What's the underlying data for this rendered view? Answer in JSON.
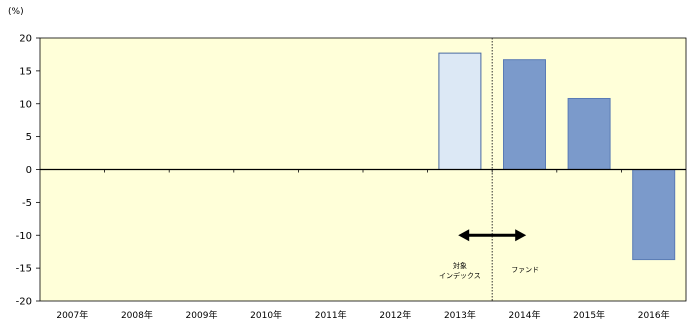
{
  "chart_data": {
    "type": "bar",
    "unit_label": "(%)",
    "categories": [
      "2007年",
      "2008年",
      "2009年",
      "2010年",
      "2011年",
      "2012年",
      "2013年",
      "2014年",
      "2015年",
      "2016年"
    ],
    "ylim": [
      -20,
      20
    ],
    "yticks": [
      20,
      15,
      10,
      5,
      0,
      -5,
      -10,
      -15,
      -20
    ],
    "series": [
      {
        "name": "対象インデックス",
        "color": "#dce8f5",
        "values": [
          null,
          null,
          null,
          null,
          null,
          null,
          17.7,
          null,
          null,
          null
        ]
      },
      {
        "name": "ファンド",
        "color": "#7b9acb",
        "values": [
          null,
          null,
          null,
          null,
          null,
          null,
          null,
          16.7,
          10.8,
          -13.7
        ]
      }
    ],
    "annotations": {
      "left_label_line1": "対象",
      "left_label_line2": "インデックス",
      "right_label": "ファンド"
    },
    "colors": {
      "plot_background": "#ffffd9",
      "axis": "#000000",
      "index_bar_fill": "#dce8f5",
      "index_bar_stroke": "#4a6aa0",
      "fund_bar_fill": "#7b9acb",
      "fund_bar_stroke": "#5a7bb5"
    }
  }
}
